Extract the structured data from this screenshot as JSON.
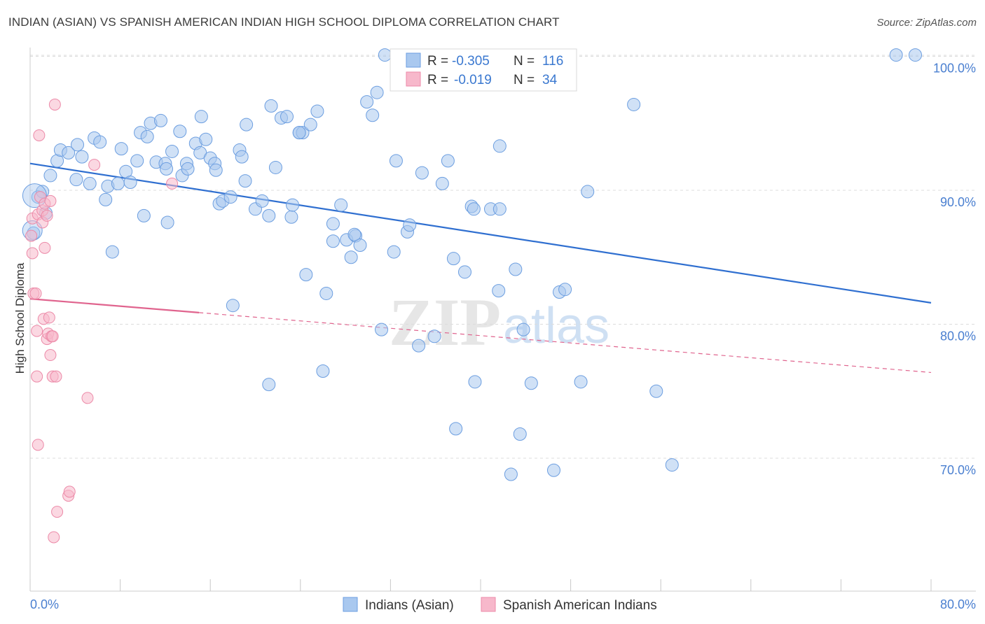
{
  "title": "INDIAN (ASIAN) VS SPANISH AMERICAN INDIAN HIGH SCHOOL DIPLOMA CORRELATION CHART",
  "source": "Source: ZipAtlas.com",
  "watermark": {
    "zip": "ZIP",
    "atlas": "atlas"
  },
  "colors": {
    "blue_fill": "#a9c8ef",
    "blue_stroke": "#6c9ee0",
    "blue_line": "#2f6fd0",
    "pink_fill": "#f7b8cb",
    "pink_stroke": "#ec8aa8",
    "pink_line": "#e0648e",
    "grid": "#dcdcdc",
    "axis_text": "#4a7fd0"
  },
  "legend": {
    "rows": [
      {
        "r_label": "R =",
        "r_value": "-0.305",
        "n_label": "N =",
        "n_value": "116"
      },
      {
        "r_label": "R =",
        "r_value": "-0.019",
        "n_label": "N =",
        "n_value": "34"
      }
    ]
  },
  "chart_data": {
    "type": "scatter",
    "title": "INDIAN (ASIAN) VS SPANISH AMERICAN INDIAN HIGH SCHOOL DIPLOMA CORRELATION CHART",
    "xlabel": "",
    "ylabel": "High School Diploma",
    "xlim": [
      0,
      80
    ],
    "ylim": [
      60,
      102
    ],
    "x_tick_labels": [
      "0.0%",
      "80.0%"
    ],
    "y_ticks": [
      70,
      80,
      90,
      100
    ],
    "y_tick_labels": [
      "70.0%",
      "80.0%",
      "90.0%",
      "100.0%"
    ],
    "series": [
      {
        "name": "Indians (Asian)",
        "color": "blue",
        "r": -0.305,
        "n": 116,
        "trend": {
          "x": [
            0,
            80
          ],
          "y": [
            92.0,
            81.6
          ]
        },
        "points": [
          [
            0.3,
            86.8
          ],
          [
            0.7,
            89.5
          ],
          [
            1.1,
            89.9
          ],
          [
            1.4,
            88.3
          ],
          [
            1.8,
            91.1
          ],
          [
            2.4,
            92.2
          ],
          [
            2.7,
            93.0
          ],
          [
            3.4,
            92.8
          ],
          [
            4.2,
            93.4
          ],
          [
            4.6,
            92.5
          ],
          [
            4.1,
            90.8
          ],
          [
            5.3,
            90.5
          ],
          [
            5.7,
            93.9
          ],
          [
            6.2,
            93.6
          ],
          [
            6.7,
            89.3
          ],
          [
            7.3,
            85.4
          ],
          [
            6.9,
            90.3
          ],
          [
            7.8,
            90.5
          ],
          [
            8.1,
            93.1
          ],
          [
            8.5,
            91.4
          ],
          [
            8.9,
            90.6
          ],
          [
            9.5,
            92.2
          ],
          [
            9.8,
            94.3
          ],
          [
            10.1,
            88.1
          ],
          [
            10.4,
            94.0
          ],
          [
            10.7,
            95.0
          ],
          [
            11.2,
            92.1
          ],
          [
            11.6,
            95.2
          ],
          [
            12.0,
            92.0
          ],
          [
            12.2,
            87.6
          ],
          [
            12.6,
            92.9
          ],
          [
            13.3,
            94.4
          ],
          [
            13.5,
            91.1
          ],
          [
            13.9,
            92.0
          ],
          [
            14.0,
            91.6
          ],
          [
            14.7,
            93.5
          ],
          [
            15.1,
            92.8
          ],
          [
            15.2,
            95.5
          ],
          [
            15.6,
            93.8
          ],
          [
            16.0,
            92.4
          ],
          [
            16.4,
            92.0
          ],
          [
            16.8,
            89.0
          ],
          [
            17.1,
            89.2
          ],
          [
            17.8,
            89.5
          ],
          [
            18.6,
            93.0
          ],
          [
            18.8,
            92.5
          ],
          [
            19.1,
            90.7
          ],
          [
            19.2,
            94.9
          ],
          [
            20.0,
            88.6
          ],
          [
            20.6,
            89.2
          ],
          [
            21.2,
            88.1
          ],
          [
            21.4,
            96.3
          ],
          [
            21.8,
            91.7
          ],
          [
            22.3,
            95.4
          ],
          [
            22.8,
            95.5
          ],
          [
            23.2,
            88.0
          ],
          [
            23.3,
            88.9
          ],
          [
            23.9,
            94.3
          ],
          [
            24.2,
            94.3
          ],
          [
            24.9,
            94.9
          ],
          [
            25.5,
            95.9
          ],
          [
            24.5,
            83.7
          ],
          [
            26.3,
            82.3
          ],
          [
            26.9,
            86.2
          ],
          [
            26.9,
            87.5
          ],
          [
            27.6,
            88.9
          ],
          [
            28.1,
            86.3
          ],
          [
            28.5,
            85.0
          ],
          [
            28.9,
            86.6
          ],
          [
            29.3,
            85.9
          ],
          [
            29.9,
            96.6
          ],
          [
            30.8,
            97.3
          ],
          [
            30.4,
            95.6
          ],
          [
            31.2,
            79.6
          ],
          [
            31.5,
            100.1
          ],
          [
            32.3,
            85.4
          ],
          [
            32.5,
            92.2
          ],
          [
            33.5,
            86.9
          ],
          [
            33.7,
            87.4
          ],
          [
            34.5,
            78.4
          ],
          [
            34.8,
            91.3
          ],
          [
            35.9,
            79.1
          ],
          [
            36.6,
            90.5
          ],
          [
            37.1,
            92.2
          ],
          [
            37.6,
            84.9
          ],
          [
            37.8,
            72.2
          ],
          [
            38.6,
            83.9
          ],
          [
            39.2,
            88.8
          ],
          [
            39.4,
            88.6
          ],
          [
            39.5,
            75.7
          ],
          [
            40.9,
            88.6
          ],
          [
            41.7,
            88.6
          ],
          [
            41.7,
            93.3
          ],
          [
            41.6,
            82.5
          ],
          [
            42.7,
            68.8
          ],
          [
            43.1,
            84.1
          ],
          [
            43.5,
            71.8
          ],
          [
            43.8,
            79.6
          ],
          [
            44.5,
            75.6
          ],
          [
            46.5,
            69.1
          ],
          [
            47.0,
            82.4
          ],
          [
            47.5,
            82.6
          ],
          [
            48.9,
            75.7
          ],
          [
            49.5,
            89.9
          ],
          [
            53.6,
            96.4
          ],
          [
            55.6,
            75.0
          ],
          [
            57.0,
            69.5
          ],
          [
            76.9,
            100.1
          ],
          [
            78.6,
            100.1
          ],
          [
            21.2,
            75.5
          ],
          [
            26.0,
            76.5
          ],
          [
            18.0,
            81.4
          ],
          [
            23.9,
            94.3
          ],
          [
            28.8,
            86.7
          ],
          [
            16.5,
            91.5
          ],
          [
            12.1,
            91.6
          ]
        ]
      },
      {
        "name": "Spanish American Indians",
        "color": "pink",
        "r": -0.019,
        "n": 34,
        "trend": {
          "x": [
            0,
            80
          ],
          "y": [
            81.9,
            76.4
          ]
        },
        "points": [
          [
            0.1,
            86.6
          ],
          [
            0.2,
            85.3
          ],
          [
            0.3,
            82.3
          ],
          [
            0.2,
            87.9
          ],
          [
            0.5,
            82.3
          ],
          [
            0.6,
            79.5
          ],
          [
            0.6,
            76.1
          ],
          [
            0.7,
            88.2
          ],
          [
            0.7,
            71.0
          ],
          [
            0.8,
            94.1
          ],
          [
            0.9,
            89.5
          ],
          [
            1.1,
            88.5
          ],
          [
            1.1,
            87.6
          ],
          [
            1.2,
            80.4
          ],
          [
            1.3,
            85.7
          ],
          [
            1.3,
            89.0
          ],
          [
            1.5,
            88.1
          ],
          [
            1.5,
            78.9
          ],
          [
            1.6,
            79.3
          ],
          [
            1.7,
            80.5
          ],
          [
            1.8,
            89.2
          ],
          [
            1.9,
            79.1
          ],
          [
            1.8,
            77.7
          ],
          [
            2.0,
            79.1
          ],
          [
            2.0,
            76.1
          ],
          [
            2.1,
            64.1
          ],
          [
            2.2,
            96.4
          ],
          [
            2.4,
            66.0
          ],
          [
            2.3,
            76.1
          ],
          [
            3.4,
            67.2
          ],
          [
            3.5,
            67.5
          ],
          [
            5.1,
            74.5
          ],
          [
            5.7,
            91.9
          ],
          [
            12.6,
            90.5
          ]
        ]
      }
    ]
  },
  "bottom_legend": [
    {
      "label": "Indians (Asian)"
    },
    {
      "label": "Spanish American Indians"
    }
  ]
}
